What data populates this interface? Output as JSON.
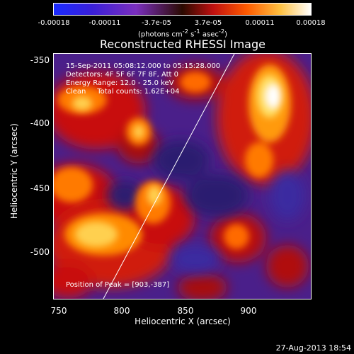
{
  "colorbar": {
    "ticks": [
      "-0.00018",
      "-0.00011",
      "-3.7e-05",
      "3.7e-05",
      "0.00011",
      "0.00018"
    ],
    "unit_html": "(photons cm<sup>-2</sup> s<sup>-1</sup> asec<sup>-2</sup>)"
  },
  "title": "Reconstructed RHESSI Image",
  "overlay": {
    "time_range": "15-Sep-2011 05:08:12.000 to 05:15:28.000",
    "detectors": "Detectors: 4F 5F 6F 7F 8F, Att 0",
    "energy": "Energy Range: 12.0 - 25.0 keV",
    "algorithm": "Clean     Total counts: 1.62E+04",
    "peak": "Position of Peak = [903,-387]"
  },
  "axes": {
    "xlabel": "Heliocentric X (arcsec)",
    "ylabel": "Heliocentric Y (arcsec)",
    "xticks": [
      "750",
      "800",
      "850",
      "900"
    ],
    "yticks": [
      "-350",
      "-400",
      "-450",
      "-500"
    ]
  },
  "footer_date": "27-Aug-2013 18:54",
  "colors": {
    "bg_low": "#3a1d7a",
    "bg_mid": "#7a2bbf",
    "red": "#d01010",
    "orange": "#ff7a00",
    "yellow": "#ffe066",
    "white": "#ffffff"
  }
}
